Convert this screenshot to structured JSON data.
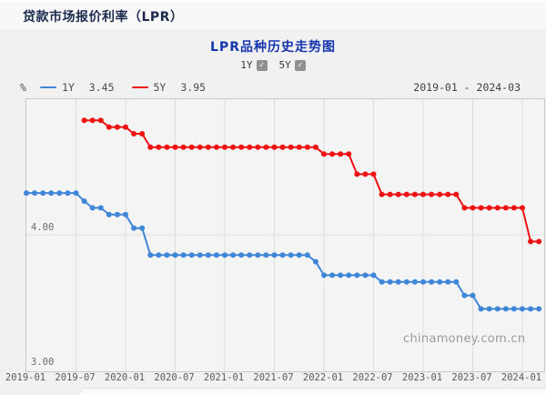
{
  "icons": {
    "check": "✓"
  },
  "page": {
    "title": "贷款市场报价利率（LPR）",
    "watermark": "chinamoney.com.cn"
  },
  "chart": {
    "title": "LPR品种历史走势图",
    "unit_label": "%",
    "date_range": "2019-01 - 2024-03",
    "toggles": [
      {
        "label": "1Y",
        "checked": true
      },
      {
        "label": "5Y",
        "checked": true
      }
    ],
    "legend": [
      {
        "name": "1Y",
        "value": "3.45",
        "color": "#3f86d8"
      },
      {
        "name": "5Y",
        "value": "3.95",
        "color": "#ee1111"
      }
    ]
  },
  "chart_data": {
    "type": "line",
    "title": "LPR品种历史走势图",
    "xlabel": "",
    "ylabel": "%",
    "ylim": [
      3.0,
      5.03
    ],
    "yticks": [
      4.0,
      3.0
    ],
    "grid": true,
    "legend_position": "top-left",
    "xticks": [
      "2019-01",
      "2019-07",
      "2020-01",
      "2020-07",
      "2021-01",
      "2021-07",
      "2022-01",
      "2022-07",
      "2023-01",
      "2023-07",
      "2024-01"
    ],
    "x": [
      "2019-01",
      "2019-02",
      "2019-03",
      "2019-04",
      "2019-05",
      "2019-06",
      "2019-07",
      "2019-08",
      "2019-09",
      "2019-10",
      "2019-11",
      "2019-12",
      "2020-01",
      "2020-02",
      "2020-03",
      "2020-04",
      "2020-05",
      "2020-06",
      "2020-07",
      "2020-08",
      "2020-09",
      "2020-10",
      "2020-11",
      "2020-12",
      "2021-01",
      "2021-02",
      "2021-03",
      "2021-04",
      "2021-05",
      "2021-06",
      "2021-07",
      "2021-08",
      "2021-09",
      "2021-10",
      "2021-11",
      "2021-12",
      "2022-01",
      "2022-02",
      "2022-03",
      "2022-04",
      "2022-05",
      "2022-06",
      "2022-07",
      "2022-08",
      "2022-09",
      "2022-10",
      "2022-11",
      "2022-12",
      "2023-01",
      "2023-02",
      "2023-03",
      "2023-04",
      "2023-05",
      "2023-06",
      "2023-07",
      "2023-08",
      "2023-09",
      "2023-10",
      "2023-11",
      "2023-12",
      "2024-01",
      "2024-02",
      "2024-03"
    ],
    "series": [
      {
        "name": "1Y",
        "color": "#3f86d8",
        "latest": 3.45,
        "values": [
          4.31,
          4.31,
          4.31,
          4.31,
          4.31,
          4.31,
          4.31,
          4.25,
          4.2,
          4.2,
          4.15,
          4.15,
          4.15,
          4.05,
          4.05,
          3.85,
          3.85,
          3.85,
          3.85,
          3.85,
          3.85,
          3.85,
          3.85,
          3.85,
          3.85,
          3.85,
          3.85,
          3.85,
          3.85,
          3.85,
          3.85,
          3.85,
          3.85,
          3.85,
          3.85,
          3.8,
          3.7,
          3.7,
          3.7,
          3.7,
          3.7,
          3.7,
          3.7,
          3.65,
          3.65,
          3.65,
          3.65,
          3.65,
          3.65,
          3.65,
          3.65,
          3.65,
          3.65,
          3.55,
          3.55,
          3.45,
          3.45,
          3.45,
          3.45,
          3.45,
          3.45,
          3.45,
          3.45
        ]
      },
      {
        "name": "5Y",
        "color": "#ee1111",
        "latest": 3.95,
        "values": [
          null,
          null,
          null,
          null,
          null,
          null,
          null,
          4.85,
          4.85,
          4.85,
          4.8,
          4.8,
          4.8,
          4.75,
          4.75,
          4.65,
          4.65,
          4.65,
          4.65,
          4.65,
          4.65,
          4.65,
          4.65,
          4.65,
          4.65,
          4.65,
          4.65,
          4.65,
          4.65,
          4.65,
          4.65,
          4.65,
          4.65,
          4.65,
          4.65,
          4.65,
          4.6,
          4.6,
          4.6,
          4.6,
          4.45,
          4.45,
          4.45,
          4.3,
          4.3,
          4.3,
          4.3,
          4.3,
          4.3,
          4.3,
          4.3,
          4.3,
          4.3,
          4.2,
          4.2,
          4.2,
          4.2,
          4.2,
          4.2,
          4.2,
          4.2,
          3.95,
          3.95
        ]
      }
    ]
  }
}
